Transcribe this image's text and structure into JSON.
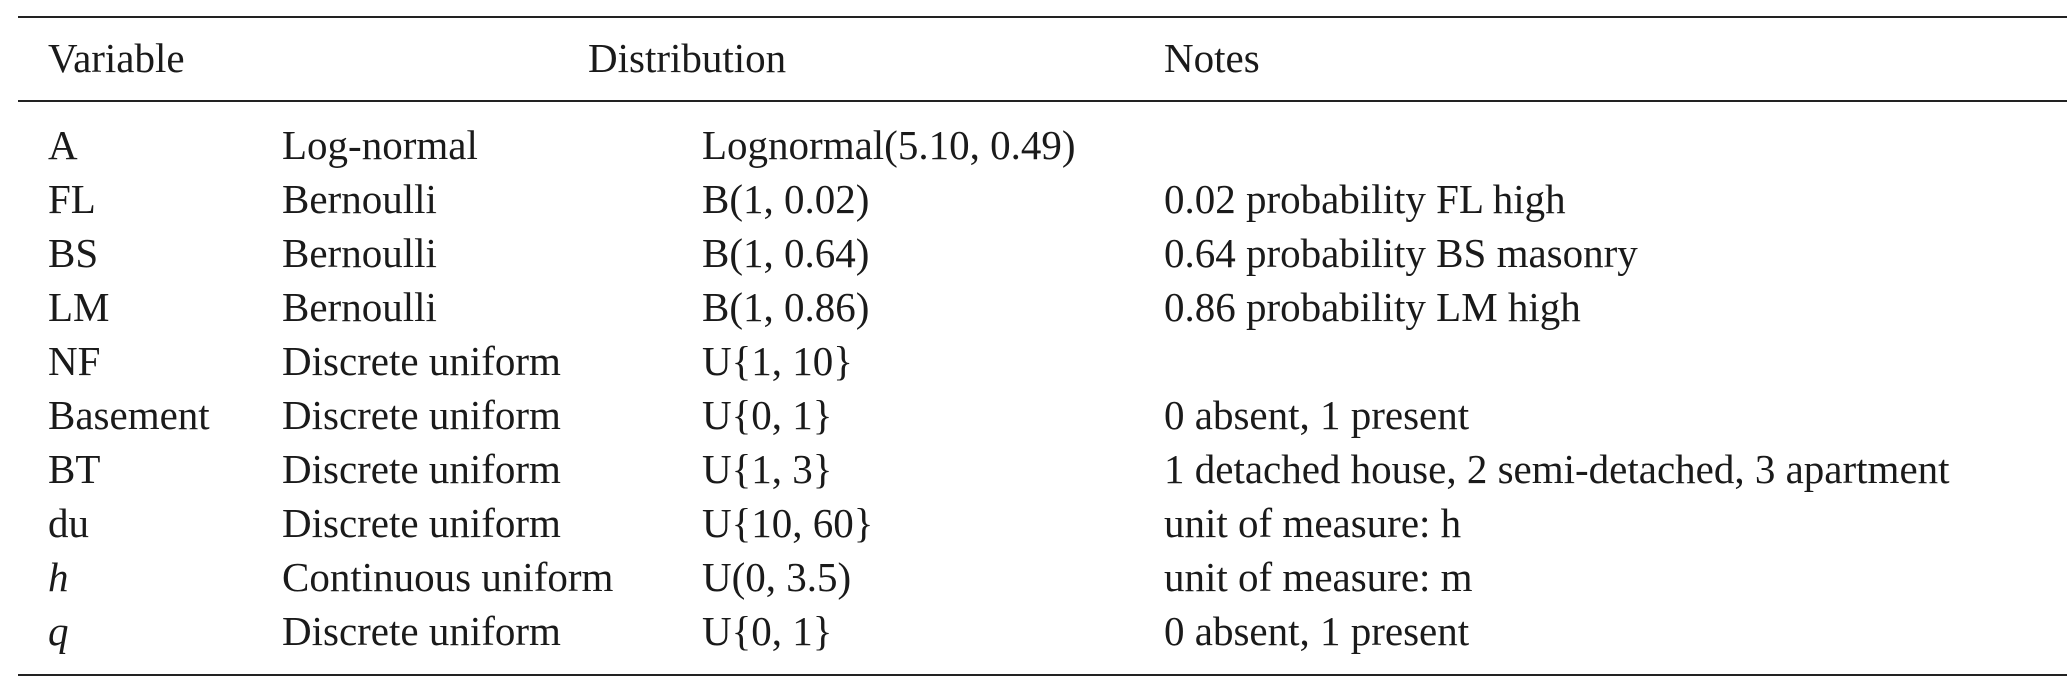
{
  "table": {
    "headers": {
      "variable": "Variable",
      "distribution": "Distribution",
      "notes": "Notes"
    },
    "rows": [
      {
        "variable": "A",
        "italic": false,
        "distribution": "Log-normal",
        "parameters": "Lognormal(5.10, 0.49)",
        "notes": ""
      },
      {
        "variable": "FL",
        "italic": false,
        "distribution": "Bernoulli",
        "parameters": "B(1, 0.02)",
        "notes": "0.02 probability FL high"
      },
      {
        "variable": "BS",
        "italic": false,
        "distribution": "Bernoulli",
        "parameters": "B(1, 0.64)",
        "notes": "0.64 probability BS masonry"
      },
      {
        "variable": "LM",
        "italic": false,
        "distribution": "Bernoulli",
        "parameters": "B(1, 0.86)",
        "notes": "0.86 probability LM high"
      },
      {
        "variable": "NF",
        "italic": false,
        "distribution": "Discrete uniform",
        "parameters": "U{1, 10}",
        "notes": ""
      },
      {
        "variable": "Basement",
        "italic": false,
        "distribution": "Discrete uniform",
        "parameters": "U{0, 1}",
        "notes": "0 absent, 1 present"
      },
      {
        "variable": "BT",
        "italic": false,
        "distribution": "Discrete uniform",
        "parameters": "U{1, 3}",
        "notes": "1 detached house, 2 semi-detached, 3 apartment"
      },
      {
        "variable": "du",
        "italic": false,
        "distribution": "Discrete uniform",
        "parameters": "U{10, 60}",
        "notes": "unit of measure: h"
      },
      {
        "variable": "h",
        "italic": true,
        "distribution": "Continuous uniform",
        "parameters": "U(0, 3.5)",
        "notes": "unit of measure: m"
      },
      {
        "variable": "q",
        "italic": true,
        "distribution": "Discrete uniform",
        "parameters": "U{0, 1}",
        "notes": "0 absent, 1 present"
      }
    ]
  }
}
